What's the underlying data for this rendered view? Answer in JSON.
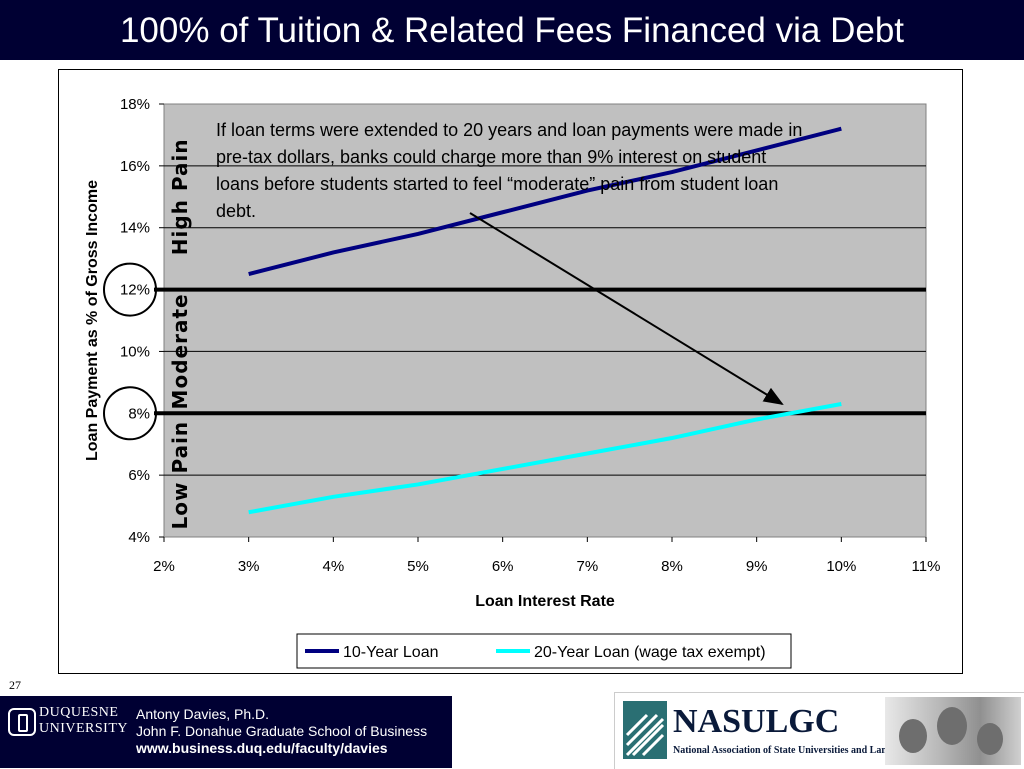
{
  "title": "100% of Tuition & Related Fees Financed via Debt",
  "slide_number": "27",
  "chart_data": {
    "type": "line",
    "xlabel": "Loan Interest Rate",
    "ylabel": "Loan Payment as % of Gross Income",
    "xlim": [
      2,
      11
    ],
    "ylim": [
      4,
      18
    ],
    "x_ticks": [
      "2%",
      "3%",
      "4%",
      "5%",
      "6%",
      "7%",
      "8%",
      "9%",
      "10%",
      "11%"
    ],
    "y_ticks": [
      "4%",
      "6%",
      "8%",
      "10%",
      "12%",
      "14%",
      "16%",
      "18%"
    ],
    "x": [
      3,
      4,
      5,
      6,
      7,
      8,
      9,
      10
    ],
    "series": [
      {
        "name": "10-Year Loan",
        "color": "#000080",
        "values": [
          12.5,
          13.2,
          13.8,
          14.5,
          15.2,
          15.8,
          16.5,
          17.2
        ]
      },
      {
        "name": "20-Year Loan (wage tax exempt)",
        "color": "#00ffff",
        "values": [
          4.8,
          5.3,
          5.7,
          6.2,
          6.7,
          7.2,
          7.8,
          8.3
        ]
      }
    ],
    "thresholds": [
      12,
      8
    ],
    "circled_ticks": [
      "12%",
      "8%"
    ],
    "zones": [
      "Low Pain",
      "Moderate",
      "High Pain"
    ],
    "annotation": "If loan terms were extended to 20 years and loan payments were made in pre-tax dollars, banks could charge more than 9% interest on student loans before students started to feel “moderate” pain from student loan debt.",
    "arrow_to": {
      "x": 9.3,
      "y": 8.3
    },
    "grid": true,
    "plot_background": "#c0c0c0",
    "legend_position": "bottom"
  },
  "footer": {
    "university": [
      "DUQUESNE",
      "UNIVERSITY"
    ],
    "author_lines": [
      "Antony Davies, Ph.D.",
      "John F. Donahue Graduate School of Business"
    ],
    "url": "www.business.duq.edu/faculty/davies",
    "org_name": "NASULGC",
    "org_full_name": "National Association of State Universities and Land-Grant Colleges"
  }
}
